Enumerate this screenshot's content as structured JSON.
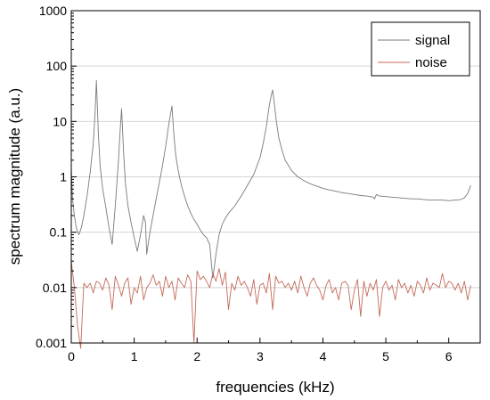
{
  "chart_data": {
    "type": "line",
    "title": "",
    "xlabel": "frequencies (kHz)",
    "ylabel": "spectrum magnitude (a.u.)",
    "xlim": [
      0,
      6.5
    ],
    "ylim": [
      0.001,
      1000
    ],
    "y_scale": "log",
    "grid": "horizontal",
    "legend_position": "top-right",
    "x_ticks": [
      "0",
      "1",
      "2",
      "3",
      "4",
      "5",
      "6"
    ],
    "y_ticks": [
      "0.001",
      "0.01",
      "0.1",
      "1",
      "10",
      "100",
      "1000"
    ],
    "series": [
      {
        "name": "signal",
        "color": "#7a7a7a",
        "x": [
          0,
          0.02,
          0.05,
          0.08,
          0.12,
          0.16,
          0.2,
          0.25,
          0.3,
          0.35,
          0.38,
          0.4,
          0.43,
          0.46,
          0.5,
          0.55,
          0.6,
          0.65,
          0.7,
          0.75,
          0.78,
          0.8,
          0.83,
          0.86,
          0.9,
          0.95,
          1.0,
          1.05,
          1.1,
          1.15,
          1.18,
          1.2,
          1.25,
          1.3,
          1.35,
          1.4,
          1.45,
          1.5,
          1.55,
          1.58,
          1.6,
          1.63,
          1.66,
          1.7,
          1.75,
          1.8,
          1.85,
          1.9,
          1.95,
          2.0,
          2.05,
          2.1,
          2.15,
          2.2,
          2.23,
          2.25,
          2.3,
          2.35,
          2.4,
          2.45,
          2.5,
          2.6,
          2.7,
          2.8,
          2.9,
          3.0,
          3.05,
          3.1,
          3.15,
          3.18,
          3.2,
          3.23,
          3.26,
          3.3,
          3.35,
          3.4,
          3.5,
          3.6,
          3.7,
          3.8,
          3.9,
          4.0,
          4.1,
          4.2,
          4.3,
          4.4,
          4.5,
          4.6,
          4.7,
          4.8,
          4.82,
          4.85,
          4.9,
          5.0,
          5.1,
          5.2,
          5.3,
          5.4,
          5.5,
          5.6,
          5.7,
          5.8,
          5.9,
          6.0,
          6.1,
          6.2,
          6.25,
          6.3,
          6.35
        ],
        "y": [
          1.5,
          0.4,
          0.2,
          0.12,
          0.09,
          0.12,
          0.2,
          0.45,
          1.2,
          4,
          15,
          55,
          6,
          1.5,
          0.6,
          0.28,
          0.12,
          0.06,
          0.3,
          2,
          8,
          17,
          3,
          0.8,
          0.3,
          0.15,
          0.08,
          0.045,
          0.09,
          0.2,
          0.15,
          0.04,
          0.1,
          0.2,
          0.4,
          0.8,
          1.6,
          3.5,
          9,
          14,
          19,
          6,
          2.5,
          1.3,
          0.7,
          0.45,
          0.3,
          0.22,
          0.17,
          0.14,
          0.11,
          0.09,
          0.08,
          0.06,
          0.025,
          0.015,
          0.04,
          0.09,
          0.14,
          0.18,
          0.22,
          0.3,
          0.45,
          0.7,
          1.1,
          2.2,
          4,
          8,
          20,
          30,
          37,
          20,
          10,
          5,
          3,
          2,
          1.3,
          1.0,
          0.85,
          0.75,
          0.68,
          0.62,
          0.58,
          0.55,
          0.52,
          0.5,
          0.48,
          0.46,
          0.45,
          0.43,
          0.4,
          0.48,
          0.45,
          0.44,
          0.43,
          0.42,
          0.41,
          0.4,
          0.4,
          0.39,
          0.38,
          0.38,
          0.38,
          0.37,
          0.38,
          0.39,
          0.42,
          0.5,
          0.7
        ]
      },
      {
        "name": "noise",
        "color": "#c46a5a",
        "x": [
          0,
          0.05,
          0.1,
          0.15,
          0.2,
          0.25,
          0.3,
          0.35,
          0.4,
          0.45,
          0.5,
          0.55,
          0.6,
          0.65,
          0.7,
          0.75,
          0.8,
          0.85,
          0.9,
          0.95,
          1.0,
          1.05,
          1.1,
          1.15,
          1.2,
          1.25,
          1.3,
          1.35,
          1.4,
          1.45,
          1.5,
          1.55,
          1.6,
          1.65,
          1.7,
          1.75,
          1.8,
          1.85,
          1.9,
          1.95,
          2.0,
          2.05,
          2.1,
          2.15,
          2.2,
          2.25,
          2.3,
          2.35,
          2.4,
          2.45,
          2.5,
          2.55,
          2.6,
          2.65,
          2.7,
          2.75,
          2.8,
          2.85,
          2.9,
          2.95,
          3.0,
          3.05,
          3.1,
          3.15,
          3.2,
          3.25,
          3.3,
          3.35,
          3.4,
          3.45,
          3.5,
          3.55,
          3.6,
          3.65,
          3.7,
          3.75,
          3.8,
          3.85,
          3.9,
          3.95,
          4.0,
          4.05,
          4.1,
          4.15,
          4.2,
          4.25,
          4.3,
          4.35,
          4.4,
          4.45,
          4.5,
          4.55,
          4.6,
          4.65,
          4.7,
          4.75,
          4.8,
          4.85,
          4.9,
          4.95,
          5.0,
          5.05,
          5.1,
          5.15,
          5.2,
          5.25,
          5.3,
          5.35,
          5.4,
          5.45,
          5.5,
          5.55,
          5.6,
          5.65,
          5.7,
          5.75,
          5.8,
          5.85,
          5.9,
          5.95,
          6.0,
          6.05,
          6.1,
          6.15,
          6.2,
          6.25,
          6.3,
          6.35
        ],
        "y": [
          0.03,
          0.01,
          0.002,
          0.0008,
          0.012,
          0.01,
          0.012,
          0.008,
          0.013,
          0.012,
          0.009,
          0.015,
          0.011,
          0.004,
          0.016,
          0.011,
          0.007,
          0.012,
          0.015,
          0.005,
          0.01,
          0.008,
          0.016,
          0.006,
          0.01,
          0.012,
          0.017,
          0.011,
          0.013,
          0.007,
          0.016,
          0.01,
          0.013,
          0.006,
          0.015,
          0.012,
          0.01,
          0.017,
          0.013,
          0.001,
          0.02,
          0.014,
          0.016,
          0.013,
          0.01,
          0.018,
          0.013,
          0.022,
          0.011,
          0.019,
          0.004,
          0.012,
          0.009,
          0.016,
          0.011,
          0.013,
          0.01,
          0.007,
          0.014,
          0.005,
          0.011,
          0.012,
          0.008,
          0.018,
          0.004,
          0.016,
          0.012,
          0.013,
          0.01,
          0.012,
          0.009,
          0.013,
          0.008,
          0.016,
          0.01,
          0.007,
          0.012,
          0.015,
          0.011,
          0.009,
          0.006,
          0.011,
          0.014,
          0.008,
          0.01,
          0.006,
          0.012,
          0.013,
          0.011,
          0.004,
          0.009,
          0.014,
          0.003,
          0.013,
          0.007,
          0.012,
          0.009,
          0.014,
          0.003,
          0.01,
          0.013,
          0.009,
          0.011,
          0.006,
          0.014,
          0.01,
          0.012,
          0.008,
          0.011,
          0.007,
          0.013,
          0.011,
          0.008,
          0.015,
          0.009,
          0.012,
          0.011,
          0.01,
          0.018,
          0.01,
          0.013,
          0.012,
          0.009,
          0.012,
          0.008,
          0.013,
          0.006,
          0.011
        ]
      }
    ]
  }
}
